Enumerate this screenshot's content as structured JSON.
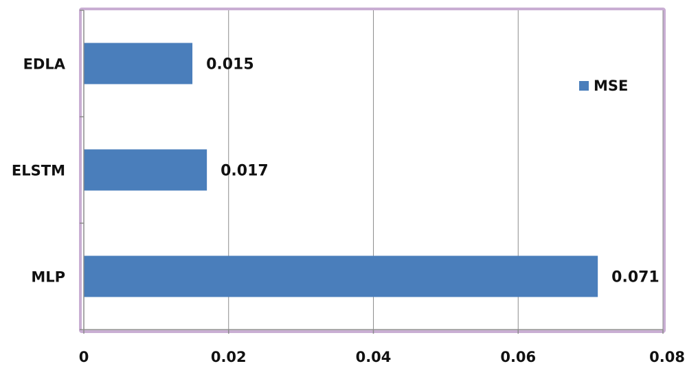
{
  "chart_data": {
    "type": "bar",
    "orientation": "horizontal",
    "categories": [
      "EDLA",
      "ELSTM",
      "MLP"
    ],
    "series": [
      {
        "name": "MSE",
        "values": [
          0.015,
          0.017,
          0.071
        ],
        "color": "#4a7ebb"
      }
    ],
    "data_labels": [
      "0.015",
      "0.017",
      "0.071"
    ],
    "xlim": [
      0,
      0.08
    ],
    "x_ticks": [
      0,
      0.02,
      0.04,
      0.06,
      0.08
    ],
    "x_tick_labels": [
      "0",
      "0.02",
      "0.04",
      "0.06",
      "0.08"
    ],
    "grid": "vertical",
    "legend": {
      "position": "right",
      "entries": [
        "MSE"
      ]
    },
    "colors": {
      "bar": "#4a7ebb",
      "frame": "#c9aed3",
      "grid": "#8c8c8c"
    }
  }
}
